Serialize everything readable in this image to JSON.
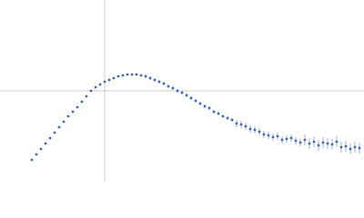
{
  "chart_data": {
    "type": "scatter",
    "color": "#3d68b9",
    "xlim": [
      0,
      400
    ],
    "ylim": [
      0,
      200
    ],
    "crosshair": {
      "x": 115,
      "y": 100
    },
    "crosshair_color": "#cccccc",
    "x": [
      35,
      40,
      45,
      50,
      55,
      60,
      65,
      70,
      75,
      80,
      85,
      90,
      95,
      100,
      105,
      110,
      115,
      120,
      125,
      130,
      135,
      140,
      145,
      150,
      155,
      160,
      165,
      170,
      175,
      180,
      185,
      190,
      195,
      200,
      205,
      210,
      215,
      220,
      225,
      230,
      235,
      240,
      245,
      250,
      255,
      260,
      265,
      270,
      275,
      280,
      285,
      290,
      295,
      300,
      305,
      310,
      315,
      320,
      325,
      330,
      335,
      340,
      345,
      350,
      355,
      360,
      365,
      370,
      375,
      380,
      385,
      390,
      395
    ],
    "values": [
      24,
      30,
      36,
      42,
      48,
      54,
      60,
      66,
      72,
      77,
      82,
      88,
      94,
      100,
      104,
      107,
      110,
      112,
      114,
      116,
      117,
      118,
      118,
      118,
      117,
      116,
      114,
      112,
      110,
      108,
      105,
      103,
      100,
      98,
      95,
      92,
      89,
      86,
      83,
      81,
      77,
      75,
      72,
      70,
      68,
      64,
      63,
      61,
      58,
      57,
      55,
      52,
      51,
      49,
      50,
      46,
      47,
      48,
      45,
      43,
      46,
      42,
      44,
      40,
      43,
      42,
      41,
      44,
      38,
      39,
      36,
      38,
      37
    ],
    "errors": [
      1,
      1,
      1,
      1,
      1,
      1,
      1,
      1,
      1,
      1,
      1,
      1,
      1,
      1,
      1,
      1,
      1,
      1,
      1,
      1,
      1,
      1,
      1,
      1,
      1,
      2,
      2,
      2,
      2,
      2,
      2,
      2,
      2,
      2,
      2,
      2,
      2,
      2,
      2,
      2,
      2,
      2,
      2,
      2,
      2,
      4,
      4,
      4,
      4,
      4,
      4,
      4,
      4,
      4,
      4,
      4,
      4,
      4,
      4,
      4,
      6,
      6,
      6,
      6,
      6,
      6,
      6,
      6,
      6,
      6,
      6,
      6,
      6
    ]
  }
}
